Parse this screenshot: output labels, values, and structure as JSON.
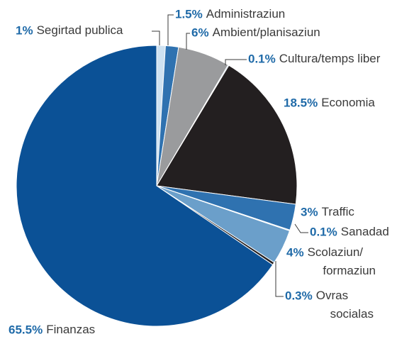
{
  "chart_data": {
    "type": "pie",
    "categories": [
      "Segirtad publica",
      "Administraziun",
      "Ambient/planisaziun",
      "Cultura/temps liber",
      "Economia",
      "Traffic",
      "Sanadad",
      "Scolaziun/\nformaziun",
      "Ovras\nsocialas",
      "Finanzas"
    ],
    "values": [
      1,
      1.5,
      6,
      0.1,
      18.5,
      3,
      0.1,
      4,
      0.3,
      65.5
    ],
    "value_labels": [
      "1%",
      "1.5%",
      "6%",
      "0.1%",
      "18.5%",
      "3%",
      "0.1%",
      "4%",
      "0.3%",
      "65.5%"
    ],
    "colors": [
      "#cfe2f1",
      "#2f72b0",
      "#9a9b9d",
      "#2f72b0",
      "#231f20",
      "#2f72b0",
      "#cfe2f1",
      "#6b9fca",
      "#231f20",
      "#0b5196"
    ]
  }
}
